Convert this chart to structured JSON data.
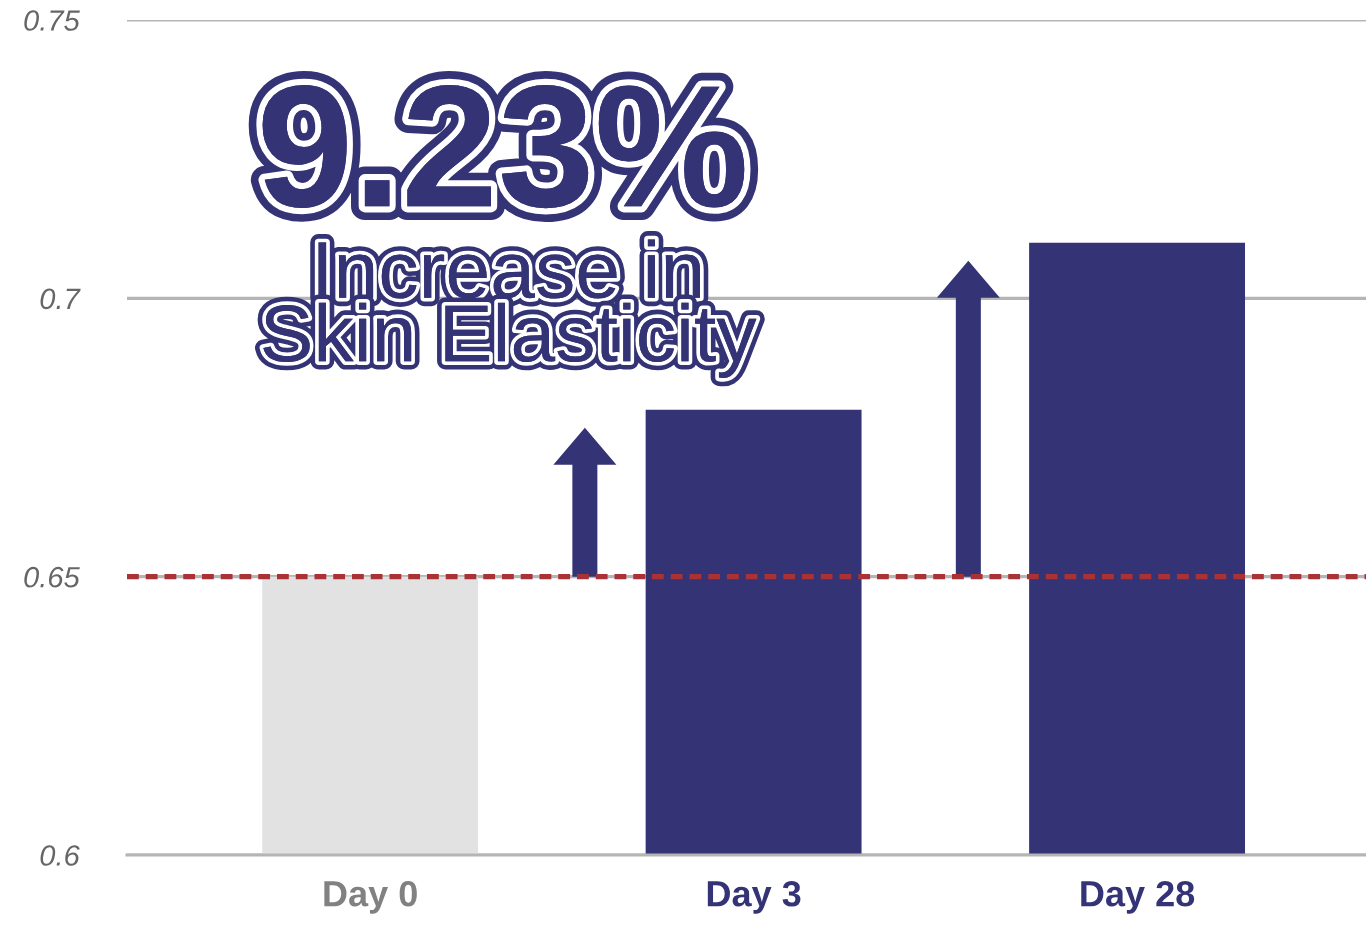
{
  "chart_data": {
    "type": "bar",
    "categories": [
      "Day 0",
      "Day 3",
      "Day 28"
    ],
    "values": [
      0.65,
      0.68,
      0.71
    ],
    "colors": [
      "#e2e2e2",
      "#333375",
      "#333375"
    ],
    "ylim": [
      0.6,
      0.75
    ],
    "yticks": [
      0.6,
      0.65,
      0.7,
      0.75
    ],
    "grid": "y",
    "ref_lines": [
      {
        "axis": "y",
        "value": 0.65,
        "color": "#a83236",
        "line_style": "dashed"
      }
    ],
    "annotations": [
      "9.23%",
      "Increase in\nSkin Elasticity"
    ]
  }
}
